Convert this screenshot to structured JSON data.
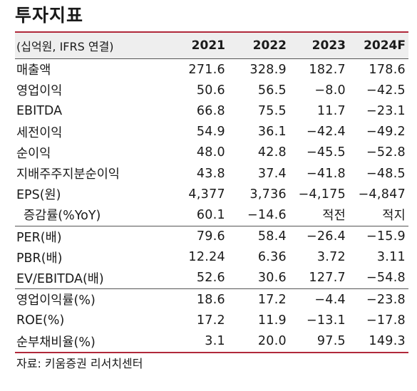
{
  "title": "투자지표",
  "header": {
    "label": "(십억원, IFRS 연결)",
    "years": [
      "2021",
      "2022",
      "2023",
      "2024F"
    ]
  },
  "groups": [
    {
      "rows": [
        {
          "label": "매출액",
          "values": [
            "271.6",
            "328.9",
            "182.7",
            "178.6"
          ]
        },
        {
          "label": "영업이익",
          "values": [
            "50.6",
            "56.5",
            "−8.0",
            "−42.5"
          ]
        },
        {
          "label": "EBITDA",
          "values": [
            "66.8",
            "75.5",
            "11.7",
            "−23.1"
          ]
        },
        {
          "label": "세전이익",
          "values": [
            "54.9",
            "36.1",
            "−42.4",
            "−49.2"
          ]
        },
        {
          "label": "순이익",
          "values": [
            "48.0",
            "42.8",
            "−45.5",
            "−52.8"
          ]
        },
        {
          "label": "지배주주지분순이익",
          "values": [
            "43.8",
            "37.4",
            "−41.8",
            "−48.5"
          ]
        },
        {
          "label": "EPS(원)",
          "values": [
            "4,377",
            "3,736",
            "−4,175",
            "−4,847"
          ]
        },
        {
          "label": "증감률(%YoY)",
          "values": [
            "60.1",
            "−14.6",
            "적전",
            "적지"
          ],
          "sub": true
        }
      ]
    },
    {
      "rows": [
        {
          "label": "PER(배)",
          "values": [
            "79.6",
            "58.4",
            "−26.4",
            "−15.9"
          ]
        },
        {
          "label": "PBR(배)",
          "values": [
            "12.24",
            "6.36",
            "3.72",
            "3.11"
          ]
        },
        {
          "label": "EV/EBITDA(배)",
          "values": [
            "52.6",
            "30.6",
            "127.7",
            "−54.8"
          ]
        }
      ]
    },
    {
      "rows": [
        {
          "label": "영업이익률(%)",
          "values": [
            "18.6",
            "17.2",
            "−4.4",
            "−23.8"
          ]
        },
        {
          "label": "ROE(%)",
          "values": [
            "17.2",
            "11.9",
            "−13.1",
            "−17.8"
          ]
        },
        {
          "label": "순부채비율(%)",
          "values": [
            "3.1",
            "20.0",
            "97.5",
            "149.3"
          ]
        }
      ]
    }
  ],
  "source": "자료: 키움증권 리서치센터",
  "colors": {
    "accent_rule": "#b0283a",
    "header_bg": "#eeeeee"
  }
}
